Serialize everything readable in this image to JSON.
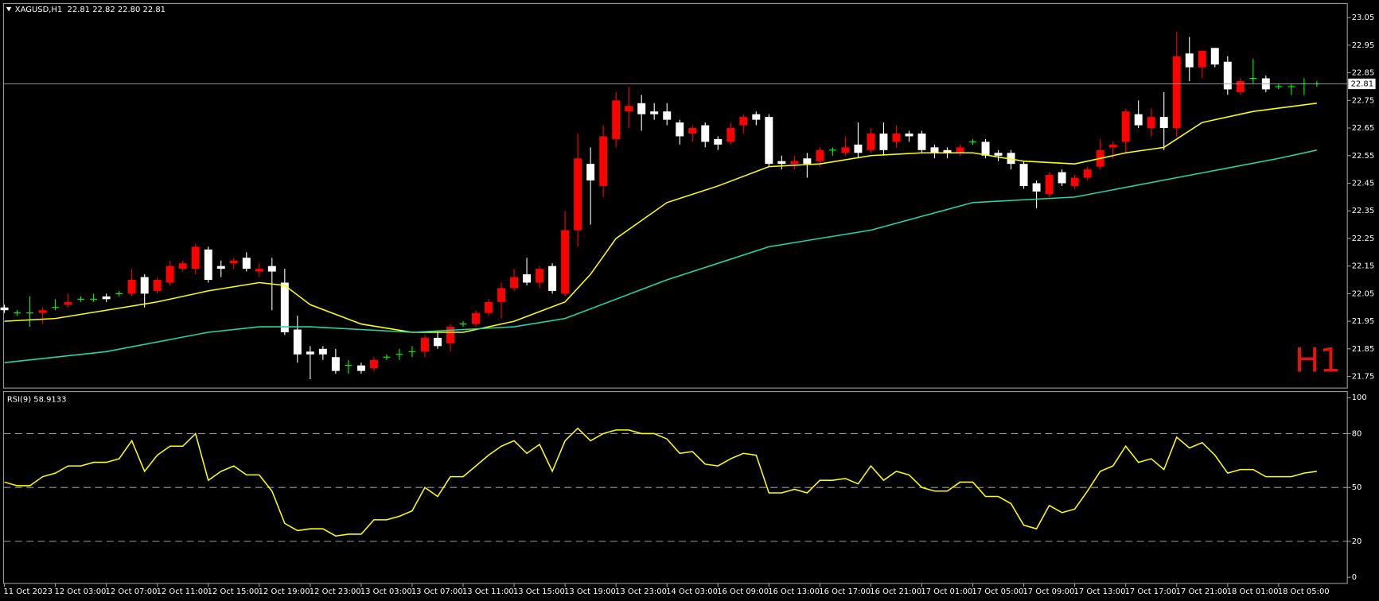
{
  "chart_data": [
    {
      "type": "candlestick",
      "title": "XAGUSD,H1  22.81 22.82 22.80 22.81",
      "annotation": "H1",
      "categories": [
        "11 Oct 2023",
        null,
        null,
        null,
        "12 Oct 03:00",
        null,
        null,
        null,
        "12 Oct 07:00",
        null,
        null,
        null,
        "12 Oct 11:00",
        null,
        null,
        null,
        "12 Oct 15:00",
        null,
        null,
        null,
        "12 Oct 19:00",
        null,
        null,
        null,
        "12 Oct 23:00",
        null,
        null,
        null,
        "13 Oct 03:00",
        null,
        null,
        null,
        "13 Oct 07:00",
        null,
        null,
        null,
        "13 Oct 11:00",
        null,
        null,
        null,
        "13 Oct 15:00",
        null,
        null,
        null,
        "13 Oct 19:00",
        null,
        null,
        null,
        "13 Oct 23:00",
        null,
        null,
        null,
        "14 Oct 03:00",
        null,
        null,
        null,
        "16 Oct 09:00",
        null,
        null,
        null,
        "16 Oct 13:00",
        null,
        null,
        null,
        "16 Oct 17:00",
        null,
        null,
        null,
        "16 Oct 21:00",
        null,
        null,
        null,
        "17 Oct 01:00",
        null,
        null,
        null,
        "17 Oct 05:00",
        null,
        null,
        null,
        "17 Oct 09:00",
        null,
        null,
        null,
        "17 Oct 13:00",
        null,
        null,
        null,
        "17 Oct 17:00",
        null,
        null,
        null,
        "17 Oct 21:00",
        null,
        null,
        null,
        "18 Oct 01:00",
        null,
        null,
        null,
        "18 Oct 05:00",
        null,
        null,
        null
      ],
      "open": [
        22.0,
        21.98,
        21.98,
        21.98,
        22.0,
        22.01,
        22.03,
        22.03,
        22.04,
        22.05,
        22.05,
        22.11,
        22.06,
        22.09,
        22.14,
        22.14,
        22.21,
        22.15,
        22.16,
        22.18,
        22.13,
        22.15,
        22.09,
        21.92,
        21.84,
        21.85,
        21.82,
        21.79,
        21.79,
        21.78,
        21.82,
        21.83,
        21.84,
        21.84,
        21.89,
        21.87,
        21.94,
        21.94,
        21.98,
        22.02,
        22.07,
        22.12,
        22.09,
        22.15,
        22.05,
        22.28,
        22.52,
        22.44,
        22.61,
        22.71,
        22.74,
        22.71,
        22.71,
        22.67,
        22.63,
        22.66,
        22.61,
        22.6,
        22.66,
        22.7,
        22.69,
        22.53,
        22.52,
        22.54,
        22.53,
        22.57,
        22.56,
        22.59,
        22.57,
        22.63,
        22.6,
        22.63,
        22.63,
        22.58,
        22.57,
        22.56,
        22.6,
        22.6,
        22.56,
        22.56,
        22.52,
        22.45,
        22.41,
        22.49,
        22.44,
        22.47,
        22.51,
        22.58,
        22.6,
        22.7,
        22.65,
        22.69,
        22.65,
        22.92,
        22.87,
        22.94,
        22.89,
        22.78,
        22.83,
        22.83,
        22.8,
        22.8,
        22.81,
        22.81
      ],
      "high": [
        22.01,
        21.99,
        22.04,
        22.0,
        22.03,
        22.05,
        22.04,
        22.05,
        22.05,
        22.06,
        22.14,
        22.12,
        22.11,
        22.17,
        22.17,
        22.23,
        22.22,
        22.17,
        22.18,
        22.2,
        22.16,
        22.18,
        22.14,
        21.97,
        21.86,
        21.86,
        21.85,
        21.81,
        21.8,
        21.82,
        21.83,
        21.85,
        21.86,
        21.9,
        21.91,
        21.94,
        21.95,
        21.99,
        22.03,
        22.09,
        22.14,
        22.18,
        22.15,
        22.16,
        22.35,
        22.63,
        22.58,
        22.66,
        22.78,
        22.8,
        22.77,
        22.74,
        22.74,
        22.68,
        22.66,
        22.67,
        22.62,
        22.67,
        22.7,
        22.71,
        22.7,
        22.55,
        22.55,
        22.56,
        22.58,
        22.58,
        22.62,
        22.67,
        22.65,
        22.67,
        22.66,
        22.64,
        22.64,
        22.59,
        22.58,
        22.59,
        22.61,
        22.61,
        22.57,
        22.57,
        22.53,
        22.46,
        22.49,
        22.5,
        22.48,
        22.51,
        22.61,
        22.6,
        22.72,
        22.75,
        22.72,
        22.78,
        23.0,
        22.98,
        22.93,
        22.94,
        22.91,
        22.83,
        22.9,
        22.84,
        22.81,
        22.81,
        22.83,
        22.82
      ],
      "low": [
        21.98,
        21.97,
        21.93,
        21.94,
        21.99,
        22.0,
        22.02,
        22.02,
        22.02,
        22.04,
        22.04,
        22.0,
        22.05,
        22.08,
        22.13,
        22.12,
        22.09,
        22.11,
        22.14,
        22.13,
        22.11,
        21.99,
        21.9,
        21.8,
        21.74,
        21.81,
        21.76,
        21.76,
        21.76,
        21.77,
        21.81,
        21.81,
        21.82,
        21.82,
        21.85,
        21.84,
        21.93,
        21.93,
        21.97,
        21.96,
        22.06,
        22.08,
        22.07,
        22.05,
        22.04,
        22.22,
        22.3,
        22.4,
        22.58,
        22.65,
        22.64,
        22.68,
        22.66,
        22.59,
        22.6,
        22.58,
        22.57,
        22.59,
        22.63,
        22.66,
        22.51,
        22.5,
        22.5,
        22.47,
        22.51,
        22.55,
        22.55,
        22.54,
        22.56,
        22.55,
        22.58,
        22.6,
        22.56,
        22.54,
        22.54,
        22.55,
        22.59,
        22.54,
        22.53,
        22.5,
        22.43,
        22.36,
        22.4,
        22.44,
        22.43,
        22.46,
        22.5,
        22.54,
        22.56,
        22.65,
        22.62,
        22.57,
        22.62,
        22.82,
        22.83,
        22.87,
        22.77,
        22.77,
        22.81,
        22.78,
        22.79,
        22.77,
        22.77,
        22.8
      ],
      "close": [
        21.99,
        21.98,
        21.98,
        21.99,
        22.0,
        22.02,
        22.03,
        22.03,
        22.03,
        22.05,
        22.1,
        22.05,
        22.1,
        22.15,
        22.16,
        22.22,
        22.1,
        22.14,
        22.17,
        22.14,
        22.14,
        22.13,
        21.91,
        21.83,
        21.83,
        21.83,
        21.77,
        21.79,
        21.77,
        21.81,
        21.82,
        21.83,
        21.84,
        21.89,
        21.86,
        21.93,
        21.94,
        21.98,
        22.02,
        22.07,
        22.11,
        22.09,
        22.14,
        22.06,
        22.28,
        22.54,
        22.46,
        22.62,
        22.75,
        22.73,
        22.7,
        22.7,
        22.68,
        22.62,
        22.65,
        22.6,
        22.59,
        22.65,
        22.69,
        22.68,
        22.52,
        22.52,
        22.53,
        22.52,
        22.57,
        22.57,
        22.58,
        22.56,
        22.63,
        22.57,
        22.63,
        22.62,
        22.57,
        22.56,
        22.56,
        22.58,
        22.6,
        22.55,
        22.55,
        22.52,
        22.44,
        22.42,
        22.48,
        22.45,
        22.47,
        22.5,
        22.57,
        22.59,
        22.71,
        22.66,
        22.69,
        22.65,
        22.91,
        22.87,
        22.93,
        22.88,
        22.79,
        22.82,
        22.83,
        22.79,
        22.8,
        22.8,
        22.81,
        22.81
      ],
      "up_color": "#ff0000",
      "down_color": "#ffffff",
      "doji_color": "#00ff00",
      "series": [
        {
          "color": "#ffff00",
          "x": [
            0,
            4,
            8,
            12,
            16,
            20,
            22,
            24,
            28,
            32,
            36,
            40,
            44,
            46,
            48,
            52,
            56,
            60,
            64,
            68,
            72,
            76,
            80,
            84,
            88,
            91,
            94,
            98,
            103
          ],
          "values": [
            21.95,
            21.96,
            21.99,
            22.02,
            22.06,
            22.09,
            22.08,
            22.01,
            21.94,
            21.91,
            21.91,
            21.95,
            22.02,
            22.12,
            22.25,
            22.38,
            22.44,
            22.51,
            22.52,
            22.55,
            22.56,
            22.56,
            22.53,
            22.52,
            22.56,
            22.58,
            22.67,
            22.71,
            22.74
          ]
        },
        {
          "color": "#20d8a8",
          "x": [
            0,
            8,
            16,
            20,
            24,
            32,
            40,
            44,
            52,
            60,
            68,
            76,
            84,
            92,
            100,
            103
          ],
          "values": [
            21.8,
            21.84,
            21.91,
            21.93,
            21.93,
            21.91,
            21.93,
            21.96,
            22.1,
            22.22,
            22.28,
            22.38,
            22.4,
            22.47,
            22.54,
            22.57
          ]
        }
      ],
      "last_price": 22.81,
      "ylim": [
        21.708,
        23.101
      ],
      "yticks": [
        21.75,
        21.85,
        21.95,
        22.05,
        22.15,
        22.25,
        22.35,
        22.45,
        22.55,
        22.65,
        22.75,
        22.85,
        22.95,
        23.05
      ]
    },
    {
      "type": "line",
      "title": "RSI(9) 58.9133",
      "series": [
        {
          "color": "#ffff00",
          "values": [
            53,
            51,
            51,
            56,
            58,
            62,
            62,
            64,
            64,
            66,
            76,
            59,
            68,
            73,
            73,
            80,
            54,
            59,
            62,
            57,
            57,
            48,
            30,
            26,
            27,
            27,
            23,
            24,
            24,
            32,
            32,
            34,
            37,
            50,
            45,
            56,
            56,
            62,
            68,
            73,
            76,
            69,
            74,
            59,
            76,
            83,
            76,
            80,
            82,
            82,
            80,
            80,
            77,
            69,
            70,
            63,
            62,
            66,
            69,
            68,
            47,
            47,
            49,
            47,
            54,
            54,
            55,
            52,
            62,
            54,
            59,
            57,
            50,
            48,
            48,
            53,
            53,
            45,
            45,
            41,
            29,
            27,
            40,
            36,
            38,
            48,
            59,
            62,
            73,
            64,
            66,
            60,
            78,
            72,
            75,
            68,
            58,
            60,
            60,
            56,
            56,
            56,
            58,
            59
          ]
        }
      ],
      "ylim": [
        -3.4,
        103.4
      ],
      "yticks": [
        0,
        20,
        50,
        80,
        100
      ],
      "levels": [
        20,
        50,
        80
      ]
    }
  ]
}
